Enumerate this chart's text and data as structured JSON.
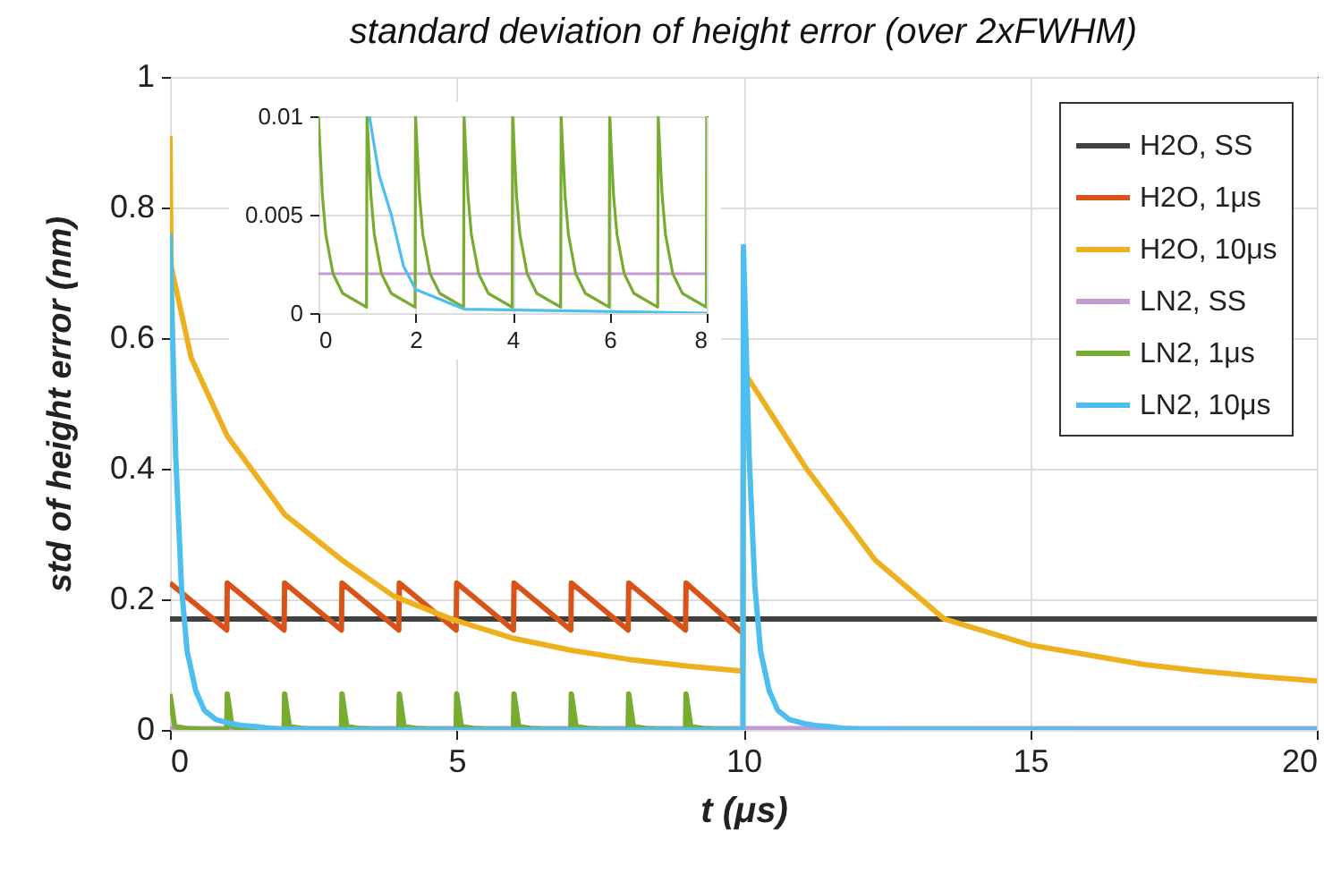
{
  "chart_data": [
    {
      "type": "line",
      "title": "standard deviation of height error (over 2xFWHM)",
      "xlabel": "t (μs)",
      "ylabel": "std of height error (nm)",
      "xlim": [
        0,
        20
      ],
      "ylim": [
        0,
        1
      ],
      "xticks": [
        0,
        5,
        10,
        15,
        20
      ],
      "yticks": [
        0,
        0.2,
        0.4,
        0.6,
        0.8,
        1
      ],
      "grid": true,
      "legend": "top right",
      "series": [
        {
          "name": "H2O, SS",
          "color": "#404040",
          "x": [
            0,
            20
          ],
          "values": [
            0.17,
            0.17
          ]
        },
        {
          "name": "H2O, 1μs",
          "color": "#d95319",
          "x": [
            0,
            0.99,
            1,
            1.99,
            2,
            2.99,
            3,
            3.99,
            4,
            4.99,
            5,
            5.99,
            6,
            6.99,
            7,
            7.99,
            8,
            8.99,
            9,
            9.99
          ],
          "values": [
            0.225,
            0.153,
            0.225,
            0.153,
            0.225,
            0.153,
            0.225,
            0.153,
            0.225,
            0.153,
            0.225,
            0.153,
            0.225,
            0.153,
            0.225,
            0.153,
            0.225,
            0.153,
            0.225,
            0.148
          ]
        },
        {
          "name": "H2O, 10μs",
          "color": "#edb120",
          "x": [
            0,
            0.02,
            0.37,
            1,
            2,
            3,
            3.9,
            4.9,
            6,
            7,
            8,
            9,
            9.99,
            10,
            11.1,
            12.3,
            13.5,
            15,
            16,
            17,
            18,
            19,
            20
          ],
          "values": [
            0.91,
            0.71,
            0.57,
            0.45,
            0.33,
            0.26,
            0.205,
            0.17,
            0.14,
            0.122,
            0.108,
            0.098,
            0.09,
            0.55,
            0.4,
            0.26,
            0.17,
            0.13,
            0.115,
            0.1,
            0.09,
            0.082,
            0.075
          ]
        },
        {
          "name": "LN2, SS",
          "color": "#c39bd3",
          "x": [
            0,
            20
          ],
          "values": [
            0.002,
            0.002
          ]
        },
        {
          "name": "LN2, 1μs",
          "color": "#77ac30",
          "x": [
            0,
            0.08,
            0.15,
            0.3,
            0.5,
            0.99,
            1,
            1.08,
            1.15,
            1.3,
            1.5,
            1.99,
            2,
            2.08,
            2.15,
            2.3,
            2.5,
            2.99,
            3,
            3.08,
            3.15,
            3.3,
            3.5,
            3.99,
            4,
            4.08,
            4.15,
            4.3,
            4.5,
            4.99,
            5,
            5.08,
            5.15,
            5.3,
            5.5,
            5.99,
            6,
            6.08,
            6.15,
            6.3,
            6.5,
            6.99,
            7,
            7.08,
            7.15,
            7.3,
            7.5,
            7.99,
            8,
            8.08,
            8.15,
            8.3,
            8.5,
            8.99,
            9,
            9.08,
            9.15,
            9.3,
            9.5,
            9.99
          ],
          "values": [
            0.055,
            0.006,
            0.004,
            0.002,
            0.001,
            0.0003,
            0.055,
            0.006,
            0.004,
            0.002,
            0.001,
            0.0003,
            0.055,
            0.006,
            0.004,
            0.002,
            0.001,
            0.0003,
            0.055,
            0.006,
            0.004,
            0.002,
            0.001,
            0.0003,
            0.055,
            0.006,
            0.004,
            0.002,
            0.001,
            0.0003,
            0.055,
            0.006,
            0.004,
            0.002,
            0.001,
            0.0003,
            0.055,
            0.006,
            0.004,
            0.002,
            0.001,
            0.0003,
            0.055,
            0.006,
            0.004,
            0.002,
            0.001,
            0.0003,
            0.055,
            0.006,
            0.004,
            0.002,
            0.001,
            0.0003,
            0.055,
            0.006,
            0.004,
            0.002,
            0.001,
            0.0003
          ]
        },
        {
          "name": "LN2, 10μs",
          "color": "#4dbeee",
          "x": [
            0,
            0.1,
            0.2,
            0.3,
            0.45,
            0.6,
            0.8,
            1.05,
            1.25,
            1.5,
            1.75,
            2,
            3,
            9.99,
            10,
            10.1,
            10.2,
            10.3,
            10.45,
            10.6,
            10.8,
            11.05,
            11.25,
            11.5,
            11.75,
            12,
            13,
            20
          ],
          "values": [
            0.76,
            0.42,
            0.22,
            0.12,
            0.06,
            0.03,
            0.016,
            0.01,
            0.007,
            0.005,
            0.0024,
            0.0012,
            0.0002,
            0,
            0.74,
            0.42,
            0.22,
            0.12,
            0.06,
            0.03,
            0.016,
            0.01,
            0.007,
            0.005,
            0.0024,
            0.0012,
            0.0002,
            0
          ]
        }
      ]
    },
    {
      "type": "line",
      "xlim": [
        0,
        8
      ],
      "ylim": [
        0,
        0.01
      ],
      "xticks": [
        0,
        2,
        4,
        6,
        8
      ],
      "yticks": [
        0,
        0.005,
        0.01
      ],
      "grid": true,
      "series": [
        {
          "color": "#c39bd3",
          "x": [
            0,
            8
          ],
          "values": [
            0.002,
            0.002
          ]
        },
        {
          "color": "#77ac30",
          "x": [
            0,
            0.08,
            0.15,
            0.3,
            0.5,
            0.99,
            1,
            1.08,
            1.15,
            1.3,
            1.5,
            1.99,
            2,
            2.08,
            2.15,
            2.3,
            2.5,
            2.99,
            3,
            3.08,
            3.15,
            3.3,
            3.5,
            3.99,
            4,
            4.08,
            4.15,
            4.3,
            4.5,
            4.99,
            5,
            5.08,
            5.15,
            5.3,
            5.5,
            5.99,
            6,
            6.08,
            6.15,
            6.3,
            6.5,
            6.99,
            7,
            7.08,
            7.15,
            7.3,
            7.5,
            7.99,
            8
          ],
          "values": [
            0.01,
            0.006,
            0.004,
            0.002,
            0.001,
            0.0003,
            0.01,
            0.006,
            0.004,
            0.002,
            0.001,
            0.0003,
            0.01,
            0.006,
            0.004,
            0.002,
            0.001,
            0.0003,
            0.01,
            0.006,
            0.004,
            0.002,
            0.001,
            0.0003,
            0.01,
            0.006,
            0.004,
            0.002,
            0.001,
            0.0003,
            0.01,
            0.006,
            0.004,
            0.002,
            0.001,
            0.0003,
            0.01,
            0.006,
            0.004,
            0.002,
            0.001,
            0.0003,
            0.01,
            0.006,
            0.004,
            0.002,
            0.001,
            0.0003,
            0.01
          ]
        },
        {
          "color": "#4dbeee",
          "x": [
            1.05,
            1.25,
            1.5,
            1.75,
            2,
            3,
            8
          ],
          "values": [
            0.01,
            0.007,
            0.005,
            0.0024,
            0.0012,
            0.0002,
            0
          ]
        }
      ]
    }
  ]
}
